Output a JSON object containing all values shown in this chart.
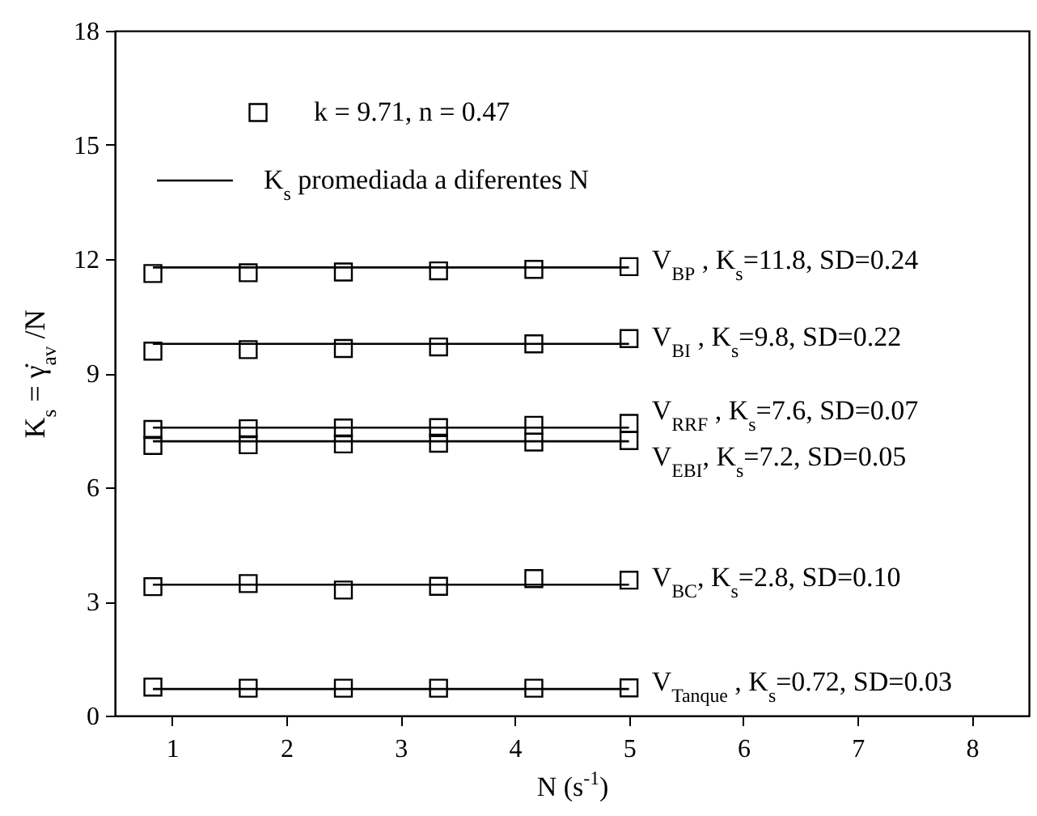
{
  "chart_data": {
    "type": "scatter",
    "xlabel": "N (s$^{-1}$)",
    "ylabel": "K$_{s}$ = γ̇$_{av}$ /N",
    "xlim": [
      0.5,
      8.5
    ],
    "xticks": [
      1,
      2,
      3,
      4,
      5,
      6,
      7,
      8
    ],
    "ylim": [
      0,
      18
    ],
    "yticks": [
      0,
      3,
      6,
      9,
      12,
      15,
      18
    ],
    "grid": false,
    "legend": "top left",
    "marker": "square",
    "x": [
      0.833,
      1.667,
      2.5,
      3.333,
      4.167,
      5
    ],
    "series": [
      {
        "name": "k  = 9.71, n = 0.47",
        "color": "#000000",
        "values": [
          11.62,
          11.64,
          11.66,
          11.69,
          11.73,
          11.8
        ]
      },
      {
        "color": "#000000",
        "values": [
          9.58,
          9.62,
          9.65,
          9.69,
          9.77,
          9.91
        ]
      },
      {
        "color": "#000000",
        "values": [
          7.52,
          7.54,
          7.56,
          7.57,
          7.63,
          7.68
        ]
      },
      {
        "color": "#000000",
        "values": [
          7.1,
          7.12,
          7.14,
          7.16,
          7.19,
          7.23
        ]
      },
      {
        "color": "#000000",
        "values": [
          3.39,
          3.47,
          3.3,
          3.4,
          3.6,
          3.56
        ]
      },
      {
        "color": "#000000",
        "values": [
          0.75,
          0.72,
          0.72,
          0.72,
          0.72,
          0.73
        ]
      },
      {
        "name": "K$_{s}$ promediada a diferentes N",
        "type": "line",
        "marker": "none",
        "color": "#000000",
        "values": [
          11.78,
          11.78,
          11.78,
          11.78,
          11.78,
          11.78
        ]
      },
      {
        "type": "line",
        "marker": "none",
        "color": "#000000",
        "values": [
          9.77,
          9.77,
          9.77,
          9.77,
          9.77,
          9.77
        ]
      },
      {
        "type": "line",
        "marker": "none",
        "color": "#000000",
        "values": [
          7.57,
          7.57,
          7.57,
          7.57,
          7.57,
          7.57
        ]
      },
      {
        "type": "line",
        "marker": "none",
        "color": "#000000",
        "values": [
          7.21,
          7.21,
          7.21,
          7.21,
          7.21,
          7.21
        ]
      },
      {
        "type": "line",
        "marker": "none",
        "color": "#000000",
        "values": [
          3.44,
          3.44,
          3.44,
          3.44,
          3.44,
          3.44
        ]
      },
      {
        "type": "line",
        "marker": "none",
        "color": "#000000",
        "values": [
          0.7,
          0.7,
          0.7,
          0.7,
          0.7,
          0.7
        ]
      }
    ],
    "annotations": [
      "V$_{BP}$ , K$_{s}$=11.8, SD=0.24",
      "V$_{BI}$ , K$_{s}$=9.8, SD=0.22",
      "V$_{RRF}$ , K$_{s}$=7.6, SD=0.07",
      "V$_{EBI}$, K$_{s}$=7.2, SD=0.05",
      "V$_{BC}$, K$_{s}$=2.8, SD=0.10",
      "V$_{Tanque}$ , K$_{s}$=0.72, SD=0.03"
    ]
  }
}
